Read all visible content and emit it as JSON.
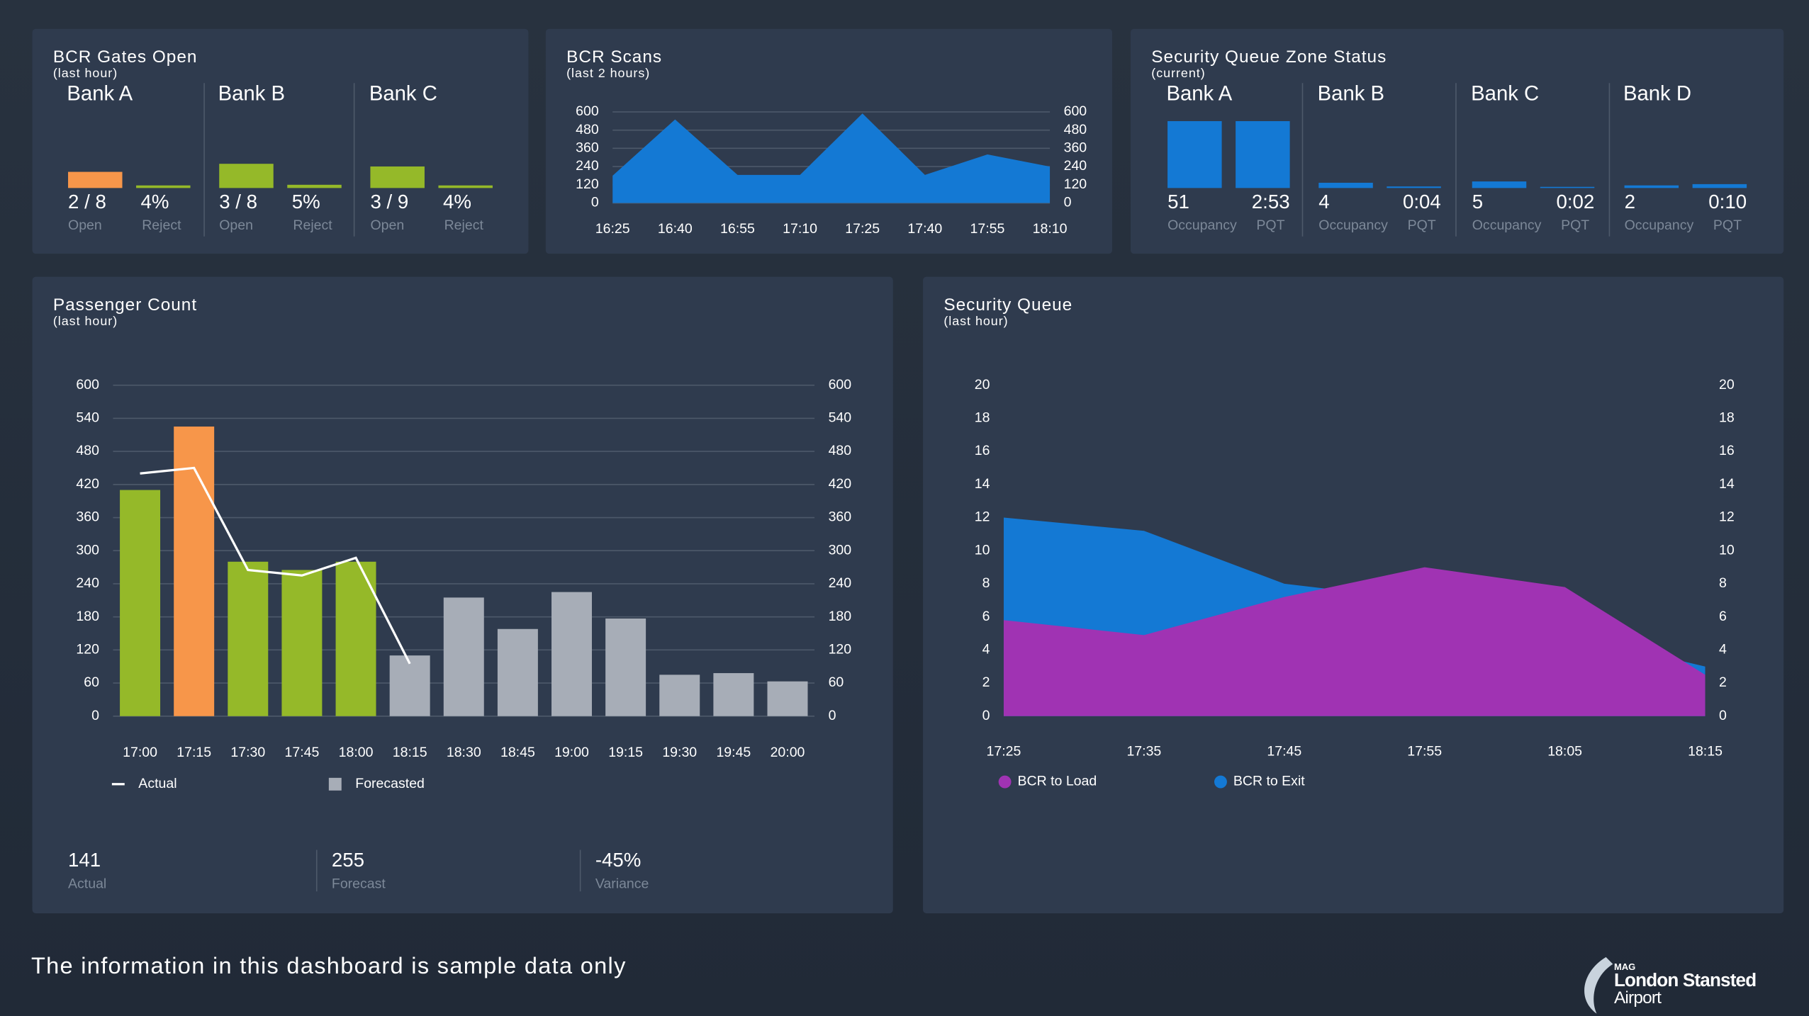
{
  "footer": "The information in this dashboard is sample data only",
  "logo": {
    "brand": "MAG",
    "name": "London Stansted",
    "sub": "Airport"
  },
  "chart_data": [
    {
      "type": "kpi",
      "title": "BCR Gates Open",
      "subtitle": "(last hour)",
      "groups": [
        {
          "name": "Bank A",
          "items": [
            {
              "value": 2,
              "total": 8,
              "value_label": "2 / 8",
              "label": "Open",
              "color": "#f7964a"
            },
            {
              "value": 4,
              "value_label": "4%",
              "label": "Reject",
              "color": "#95b929"
            }
          ]
        },
        {
          "name": "Bank B",
          "items": [
            {
              "value": 3,
              "total": 8,
              "value_label": "3 / 8",
              "label": "Open",
              "color": "#95b929"
            },
            {
              "value": 5,
              "value_label": "5%",
              "label": "Reject",
              "color": "#95b929"
            }
          ]
        },
        {
          "name": "Bank C",
          "items": [
            {
              "value": 3,
              "total": 9,
              "value_label": "3 / 9",
              "label": "Open",
              "color": "#95b929"
            },
            {
              "value": 4,
              "value_label": "4%",
              "label": "Reject",
              "color": "#95b929"
            }
          ]
        }
      ]
    },
    {
      "type": "area",
      "title": "BCR Scans",
      "subtitle": "(last 2 hours)",
      "categories": [
        "16:25",
        "16:40",
        "16:55",
        "17:10",
        "17:25",
        "17:40",
        "17:55",
        "18:10"
      ],
      "series": [
        {
          "name": "Scans",
          "color": "#1479d4",
          "values": [
            180,
            550,
            185,
            185,
            590,
            185,
            320,
            240
          ]
        }
      ],
      "ylim": [
        0,
        600
      ],
      "yticks": [
        0,
        120,
        240,
        360,
        480,
        600
      ],
      "y2ticks": [
        0,
        120,
        240,
        360,
        480,
        600
      ],
      "grid": true
    },
    {
      "type": "kpi",
      "title": "Security Queue Zone Status",
      "subtitle": "(current)",
      "groups": [
        {
          "name": "Bank A",
          "items": [
            {
              "value": 51,
              "label": "Occupancy",
              "color": "#1479d4"
            },
            {
              "value": 173,
              "value_label": "2:53",
              "label": "PQT",
              "color": "#1479d4"
            }
          ]
        },
        {
          "name": "Bank B",
          "items": [
            {
              "value": 4,
              "label": "Occupancy",
              "color": "#1479d4"
            },
            {
              "value": 4,
              "value_label": "0:04",
              "label": "PQT",
              "color": "#1479d4"
            }
          ]
        },
        {
          "name": "Bank C",
          "items": [
            {
              "value": 5,
              "label": "Occupancy",
              "color": "#1479d4"
            },
            {
              "value": 2,
              "value_label": "0:02",
              "label": "PQT",
              "color": "#1479d4"
            }
          ]
        },
        {
          "name": "Bank D",
          "items": [
            {
              "value": 2,
              "label": "Occupancy",
              "color": "#1479d4"
            },
            {
              "value": 10,
              "value_label": "0:10",
              "label": "PQT",
              "color": "#1479d4"
            }
          ]
        }
      ]
    },
    {
      "type": "bar",
      "title": "Passenger Count",
      "subtitle": "(last hour)",
      "categories": [
        "17:00",
        "17:15",
        "17:30",
        "17:45",
        "18:00",
        "18:15",
        "18:30",
        "18:45",
        "19:00",
        "19:15",
        "19:30",
        "19:45",
        "20:00"
      ],
      "series": [
        {
          "name": "Forecasted",
          "type": "bar",
          "color": "#a7adb7",
          "values": [
            410,
            525,
            280,
            265,
            280,
            110,
            215,
            158,
            225,
            177,
            75,
            78,
            63
          ],
          "colors": [
            "#95b929",
            "#f7964a",
            "#95b929",
            "#95b929",
            "#95b929",
            "#a7adb7",
            "#a7adb7",
            "#a7adb7",
            "#a7adb7",
            "#a7adb7",
            "#a7adb7",
            "#a7adb7",
            "#a7adb7"
          ]
        },
        {
          "name": "Actual",
          "type": "line",
          "color": "#ffffff",
          "values": [
            440,
            450,
            265,
            255,
            287,
            95,
            null,
            null,
            null,
            null,
            null,
            null,
            null
          ]
        }
      ],
      "ylim": [
        0,
        600
      ],
      "yticks": [
        0,
        60,
        120,
        180,
        240,
        300,
        360,
        420,
        480,
        540,
        600
      ],
      "y2ticks": [
        0,
        60,
        120,
        180,
        240,
        300,
        360,
        420,
        480,
        540,
        600
      ],
      "grid": true,
      "stats": [
        {
          "value": 141,
          "label": "Actual"
        },
        {
          "value": 255,
          "label": "Forecast"
        },
        {
          "value": -45,
          "value_label": "-45%",
          "label": "Variance"
        }
      ]
    },
    {
      "type": "area",
      "title": "Security Queue",
      "subtitle": "(last hour)",
      "categories": [
        "17:25",
        "17:35",
        "17:45",
        "17:55",
        "18:05",
        "18:15"
      ],
      "series": [
        {
          "name": "BCR to Load",
          "color": "#a033b3",
          "values": [
            5.8,
            4.9,
            7.2,
            9.0,
            7.8,
            2.5
          ]
        },
        {
          "name": "BCR to Exit",
          "color": "#1479d4",
          "values": [
            12,
            11.2,
            8,
            7,
            5,
            3
          ]
        }
      ],
      "ylim": [
        0,
        20
      ],
      "yticks": [
        0,
        2,
        4,
        6,
        8,
        10,
        12,
        14,
        16,
        18,
        20
      ],
      "y2ticks": [
        0,
        2,
        4,
        6,
        8,
        10,
        12,
        14,
        16,
        18,
        20
      ],
      "grid": false,
      "legend": true
    }
  ]
}
